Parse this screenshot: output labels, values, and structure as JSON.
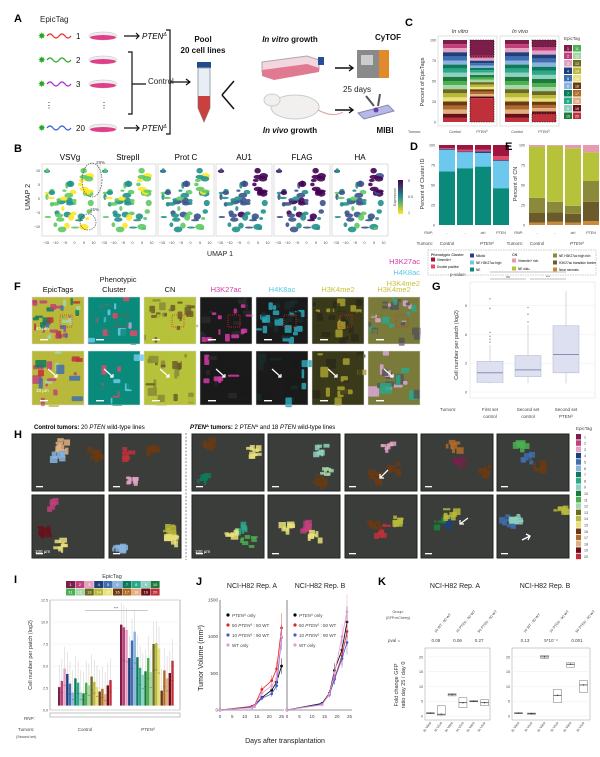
{
  "panels": {
    "A": "A",
    "B": "B",
    "C": "C",
    "D": "D",
    "E": "E",
    "F": "F",
    "G": "G",
    "H": "H",
    "I": "I",
    "J": "J",
    "K": "K"
  },
  "colors": {
    "epictag": [
      "#7b1e4a",
      "#c2407a",
      "#e3a3c4",
      "#1f3f7a",
      "#3f6fb0",
      "#8ab4e0",
      "#0f7a5a",
      "#2aa88a",
      "#8fd0c0",
      "#1e7a3a",
      "#4caf50",
      "#a5d6a7",
      "#6b6b1e",
      "#b8b83a",
      "#e8e07a",
      "#6b3a12",
      "#b06a2a",
      "#e0b080",
      "#6b0f1a",
      "#c0303a"
    ],
    "black": "#000000",
    "red": "#e8231f",
    "blue": "#4a5bd0",
    "pink": "#e59ad8"
  },
  "A": {
    "epictag_label": "EpicTag",
    "line_numbers": [
      "1",
      "2",
      "3",
      "20"
    ],
    "pten": "PTEN",
    "delta": "Δ",
    "control": "Control",
    "pool": "Pool",
    "cell_lines": "20 cell lines",
    "in_vitro_it": "In vitro",
    "in_vivo_it": "In vivo",
    "growth": "growth",
    "cytof": "CyTOF",
    "days": "25 days",
    "mibi": "MIBI"
  },
  "B": {
    "markers": [
      "VSVg",
      "StrepII",
      "Prot C",
      "AU1",
      "FLAG",
      "HA"
    ],
    "pct_top": "29%",
    "pct_bottom": "15%",
    "xlabel": "UMAP 1",
    "ylabel": "UMAP 2",
    "xticks": [
      "−15",
      "−10",
      "−5",
      "0",
      "5",
      "10"
    ],
    "yticks": [
      "10",
      "5",
      "0",
      "−5",
      "−10"
    ],
    "colorbar_label": "Expression",
    "colorbar_ticks": [
      "0",
      "0.5",
      "1"
    ]
  },
  "C": {
    "title_vitro": "In vitro",
    "title_vivo": "In vivo",
    "ylabel": "Percent of EpicTags",
    "yticks": [
      "0",
      "25",
      "50",
      "75",
      "100"
    ],
    "tumors_label": "Tumors:",
    "groups": [
      "Control",
      "PTEN",
      "Control",
      "PTEN"
    ],
    "delta": "Δ",
    "legend_title": "EpicTag",
    "legend_numbers": [
      "1",
      "2",
      "3",
      "4",
      "5",
      "6",
      "7",
      "8",
      "9",
      "10",
      "11",
      "12",
      "13",
      "14",
      "15",
      "16",
      "17",
      "18",
      "19",
      "20"
    ],
    "bars": [
      [
        5,
        5,
        5,
        5,
        5,
        5,
        5,
        5,
        5,
        5,
        5,
        5,
        5,
        5,
        5,
        5,
        5,
        5,
        5,
        5
      ],
      [
        20,
        3,
        3,
        3,
        3,
        3,
        3,
        3,
        3,
        3,
        3,
        3,
        3,
        3,
        3,
        3,
        3,
        3,
        2,
        30
      ],
      [
        5,
        5,
        5,
        5,
        5,
        5,
        5,
        5,
        5,
        5,
        5,
        5,
        5,
        5,
        5,
        5,
        5,
        5,
        5,
        5
      ],
      [
        8,
        5,
        5,
        5,
        5,
        5,
        5,
        5,
        5,
        5,
        5,
        5,
        5,
        4,
        4,
        4,
        4,
        4,
        3,
        10
      ]
    ]
  },
  "D": {
    "ylabel": "Percent of Cluster ID",
    "yticks": [
      "0",
      "25",
      "50",
      "75",
      "100"
    ],
    "rnp_label": "RNP:",
    "rnp": [
      "-",
      "-",
      "ctrl",
      "PTEN"
    ],
    "tumors_label": "Tumors:",
    "tumors": [
      "Control",
      "PTEN"
    ],
    "categories": [
      "NE",
      "NE H3K27ac high",
      "Mitotic",
      "Double positive",
      "Vimentin+"
    ],
    "colors": [
      "#0a8a7a",
      "#6cc8ec",
      "#2b3f8c",
      "#e04a6a",
      "#a0153e"
    ],
    "bars": [
      [
        67,
        27,
        1,
        1,
        4
      ],
      [
        71,
        20,
        1,
        2,
        6
      ],
      [
        73,
        17,
        2,
        2,
        6
      ],
      [
        46,
        34,
        1,
        5,
        14
      ]
    ]
  },
  "E": {
    "ylabel": "Percent of CN",
    "yticks": [
      "0",
      "25",
      "50",
      "75",
      "100"
    ],
    "rnp_label": "RNP:",
    "rnp": [
      "-",
      "-",
      "ctrl",
      "PTEN"
    ],
    "tumors_label": "Tumors:",
    "tumors": [
      "Control",
      "PTEN"
    ],
    "categories": [
      "Near necrosis",
      "H3K27ac transition border",
      "NE H3K27ac high rich",
      "NE rich",
      "Vimentin+ rich"
    ],
    "colors": [
      "#c98a3a",
      "#6b5a2a",
      "#8a8a3a",
      "#b5c23a",
      "#e59ab0"
    ],
    "bars": [
      [
        3,
        12,
        19,
        64,
        2
      ],
      [
        4,
        12,
        13,
        70,
        1
      ],
      [
        3,
        11,
        10,
        72,
        4
      ],
      [
        5,
        24,
        26,
        36,
        9
      ]
    ]
  },
  "DE_legend": {
    "pc_title": "Phenotypic Cluster",
    "pc_items": [
      "Vimentin+",
      "Double positive",
      "Mitotic",
      "NE H3K27ac high",
      "NE"
    ],
    "cn_title": "CN",
    "cn_items": [
      "Vimentin+ rich",
      "NE rich",
      "NE H3K27ac high rich",
      "H3K27ac transition border",
      "Near necrosis"
    ]
  },
  "F": {
    "columns": [
      "EpicTags",
      "Phenotypic Cluster",
      "CN",
      "H3K27ac",
      "H4K8ac",
      "H3K4me2",
      "H3K4me2"
    ],
    "phenotypic": "Phenotypic",
    "cluster": "Cluster",
    "overlay": [
      "H3K27ac",
      "H4K8ac",
      "H3K4me2"
    ],
    "overlay_colors": [
      "#d63aa8",
      "#5cc8e0",
      "#c8c03a"
    ],
    "scale_top": "40 µm",
    "scale_bottom": "10 µm"
  },
  "G": {
    "pvalue_label": "p-value:",
    "sig": [
      "***",
      "ns",
      "***"
    ],
    "ylabel": "Cell number per patch (log2)",
    "yticks": [
      "0",
      "3",
      "6",
      "9"
    ],
    "tumors_label": "Tumors:",
    "groups": [
      {
        "l1": "First set",
        "l2": "control",
        "min": 0.9,
        "q1": 1.0,
        "med": 2.0,
        "q3": 3.2,
        "max": 4.9,
        "outliers": [
          5.2,
          5.5,
          5.8,
          6.2,
          8.7,
          9.7
        ]
      },
      {
        "l1": "Second set",
        "l2": "control",
        "min": 0.9,
        "q1": 1.6,
        "med": 2.3,
        "q3": 3.8,
        "max": 7.0,
        "outliers": [
          7.3,
          8.1,
          8.8
        ]
      },
      {
        "l1": "Second set",
        "l2": "PTEN",
        "min": 0.9,
        "q1": 2.0,
        "med": 3.9,
        "q3": 6.9,
        "max": 10.5,
        "outliers": []
      }
    ],
    "delta": "Δ"
  },
  "H": {
    "control_bold": "Control tumors:",
    "control_rest": " 20 ",
    "control_pten": "PTEN",
    "control_tail": " wild-type lines",
    "pten_bold": "PTEN",
    "delta": "Δ",
    "pten_tumors": " tumors:",
    "pten_rest": " 2 ",
    "pten_mid": " and 18 ",
    "pten_tail": " wild-type lines",
    "legend_title": "EpicTag",
    "legend_numbers": [
      "1",
      "2",
      "3",
      "4",
      "5",
      "6",
      "7",
      "8",
      "9",
      "10",
      "11",
      "12",
      "13",
      "14",
      "15",
      "16",
      "17",
      "18",
      "19",
      "20"
    ],
    "scale": "100 µm"
  },
  "I": {
    "legend_title": "EpicTag",
    "legend_numbers": [
      "1",
      "2",
      "3",
      "4",
      "5",
      "6",
      "7",
      "8",
      "9",
      "10",
      "11",
      "12",
      "13",
      "14",
      "15",
      "16",
      "17",
      "18",
      "19",
      "20"
    ],
    "ylabel": "Cell number per patch (log2)",
    "yticks": [
      "0.0",
      "2.5",
      "5.0",
      "7.5",
      "10.0",
      "12.5"
    ],
    "sig": "***",
    "rnp_label": "RNP:",
    "tumors_label": "Tumors:",
    "second_set": "(Second set)",
    "groups": [
      "Control",
      "PTEN"
    ],
    "delta": "Δ",
    "control_q3": [
      2.6,
      3.3,
      4.7,
      4.1,
      3.0,
      2.0,
      3.6,
      3.1,
      2.0,
      1.9,
      3.1,
      2.8,
      3.8,
      3.2,
      2.6,
      2.1,
      2.4,
      1.8,
      2.8,
      3.4
    ],
    "pten_q3": [
      9.7,
      9.4,
      9.1,
      5.9,
      7.9,
      8.9,
      6.0,
      4.8,
      4.0,
      4.4,
      5.9,
      4.3,
      7.5,
      7.6,
      7.0,
      2.2,
      4.5,
      3.6,
      4.2,
      5.6
    ]
  },
  "J": {
    "titles": [
      "NCI-H82 Rep. A",
      "NCI-H82 Rep. B"
    ],
    "ylabel": "Tumor Volume (mm³)",
    "xlabel": "Days after transplantation",
    "yticks": [
      "0",
      "500",
      "1000",
      "1500"
    ],
    "xticks": [
      "0",
      "5",
      "10",
      "15",
      "20",
      "25"
    ],
    "legend": [
      {
        "pre": "",
        "pten": "PTEN",
        "post": " only"
      },
      {
        "pre": "50 ",
        "pten": "PTEN",
        "post": " : 50 WT"
      },
      {
        "pre": "10 ",
        "pten": "PTEN",
        "post": " : 90 WT"
      },
      {
        "pre": "WT only",
        "pten": "",
        "post": ""
      }
    ],
    "delta": "Δ",
    "chart_data": {
      "type": "line",
      "xlim": [
        0,
        26
      ],
      "ylim": [
        0,
        1500
      ],
      "repA": {
        "x": [
          0,
          13,
          14,
          17,
          21,
          23,
          25
        ],
        "series": [
          {
            "name": "PTEN only",
            "values": [
              0,
              40,
              60,
              170,
              270,
              380,
              600
            ]
          },
          {
            "name": "50 PTEN : 50 WT",
            "values": [
              0,
              50,
              60,
              280,
              400,
              560,
              1120
            ]
          },
          {
            "name": "10 PTEN : 90 WT",
            "values": [
              0,
              40,
              50,
              160,
              220,
              330,
              990
            ]
          },
          {
            "name": "WT only",
            "values": [
              0,
              30,
              50,
              230,
              330,
              430,
              1000
            ]
          }
        ]
      },
      "repB": {
        "x": [
          0,
          14,
          17,
          19,
          22,
          24
        ],
        "series": [
          {
            "name": "PTEN only",
            "values": [
              0,
              90,
              230,
              540,
              820,
              1200
            ]
          },
          {
            "name": "50 PTEN : 50 WT",
            "values": [
              0,
              80,
              220,
              430,
              740,
              1070
            ]
          },
          {
            "name": "10 PTEN : 90 WT",
            "values": [
              0,
              80,
              210,
              420,
              700,
              920
            ]
          },
          {
            "name": "WT only",
            "values": [
              0,
              70,
              220,
              500,
              1000,
              1340
            ]
          }
        ]
      }
    }
  },
  "K": {
    "titles": [
      "NCI-H82 Rep. A",
      "NCI-H82 Rep. B"
    ],
    "group_label": "Group:",
    "group_sub": "(GFP:mCherry)",
    "group_names": [
      "10 WT : 90 WT",
      "10 PTEN : 90 WT",
      "50 PTEN : 50 WT"
    ],
    "pval_label": "pval =",
    "pvals_A": [
      "0.08",
      "0.06",
      "0.27"
    ],
    "pvals_B": [
      "0.13",
      "5*10⁻⁴",
      "0.001"
    ],
    "ylabel1": "Fold change GFP",
    "ylabel2": "ratio day 25 / day 0",
    "yticks": [
      "0",
      "5",
      "10",
      "15",
      "20"
    ],
    "conditions": [
      "In Vitro",
      "In Vivo",
      "In Vitro",
      "In Vivo",
      "In Vitro",
      "In Vivo"
    ],
    "chart_data": {
      "type": "box",
      "ylim": [
        0,
        23
      ],
      "repA": [
        {
          "q1": 0.9,
          "med": 1.0,
          "q3": 1.1
        },
        {
          "q1": 0.3,
          "med": 0.6,
          "q3": 3.5
        },
        {
          "q1": 6.8,
          "med": 7.2,
          "q3": 7.6
        },
        {
          "q1": 2.8,
          "med": 4.5,
          "q3": 6.2
        },
        {
          "q1": 4.8,
          "med": 5.0,
          "q3": 5.2
        },
        {
          "q1": 3.5,
          "med": 4.5,
          "q3": 5.5
        }
      ],
      "repB": [
        {
          "q1": 0.9,
          "med": 1.0,
          "q3": 1.1
        },
        {
          "q1": 0.5,
          "med": 0.8,
          "q3": 1.0
        },
        {
          "q1": 19.5,
          "med": 20.0,
          "q3": 20.5
        },
        {
          "q1": 4.5,
          "med": 7.0,
          "q3": 9.0
        },
        {
          "q1": 16.5,
          "med": 17.5,
          "q3": 18.0
        },
        {
          "q1": 8.0,
          "med": 10.5,
          "q3": 12.0
        }
      ]
    }
  }
}
